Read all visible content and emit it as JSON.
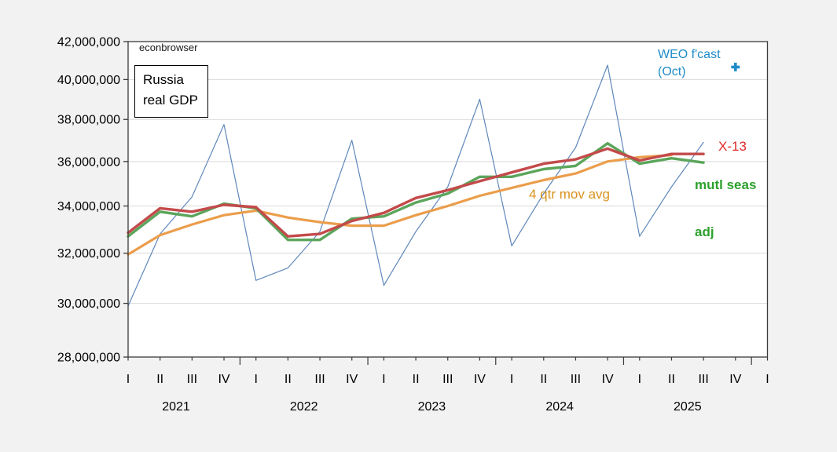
{
  "labels": {
    "watermark": "econbrowser",
    "box_line1": "Russia",
    "box_line2": "real GDP",
    "weo_line1": "WEO f'cast",
    "weo_line2": "(Oct)",
    "x13": "X-13",
    "mutl_line1": "mutl seas",
    "mutl_line2": "adj",
    "movavg": "4 qtr mov avg"
  },
  "colors": {
    "background": "#f1f2f1",
    "plot_background": "#ffffff",
    "gridline": "#d9d9d9",
    "frame": "#3a3a3a",
    "axis_text": "#000000",
    "nsa_line": "#5f87ba",
    "x13_line": "#c34a4a",
    "mutl_line": "#5ba55b",
    "movavg_line": "#eb9d4b",
    "weo_marker": "#1e8cc8"
  },
  "chart_data": {
    "type": "line",
    "title": "Russia real GDP",
    "yscale": "log",
    "ylim": [
      28000000,
      42000000
    ],
    "grid": true,
    "ytick_values": [
      42000000,
      40000000,
      38000000,
      36000000,
      34000000,
      32000000,
      30000000,
      28000000
    ],
    "ytick_labels": [
      "42,000,000",
      "40,000,000",
      "38,000,000",
      "36,000,000",
      "34,000,000",
      "32,000,000",
      "30,000,000",
      "28,000,000"
    ],
    "x_axis": {
      "quarter_labels": [
        "I",
        "II",
        "III",
        "IV",
        "I",
        "II",
        "III",
        "IV",
        "I",
        "II",
        "III",
        "IV",
        "I",
        "II",
        "III",
        "IV",
        "I",
        "II",
        "III",
        "IV",
        "I"
      ],
      "year_labels": [
        {
          "label": "2021",
          "center_index": 1.5
        },
        {
          "label": "2022",
          "center_index": 5.5
        },
        {
          "label": "2023",
          "center_index": 9.5
        },
        {
          "label": "2024",
          "center_index": 13.5
        },
        {
          "label": "2025",
          "center_index": 17.5
        }
      ]
    },
    "series": [
      {
        "name": "raw-nsa-gdp",
        "legend": "",
        "color_key": "nsa_line",
        "stroke_width": 1.2,
        "values": [
          29900000,
          32800000,
          34400000,
          37750000,
          30900000,
          31400000,
          32900000,
          37000000,
          30700000,
          32900000,
          34850000,
          39000000,
          32300000,
          34550000,
          36650000,
          40750000,
          32700000,
          34850000,
          36900000
        ]
      },
      {
        "name": "4-qtr-mov-avg",
        "legend": "4 qtr mov avg",
        "color_key": "movavg_line",
        "stroke_width": 3.2,
        "values": [
          31950000,
          32750000,
          33200000,
          33600000,
          33800000,
          33500000,
          33300000,
          33150000,
          33150000,
          33600000,
          34000000,
          34450000,
          34800000,
          35150000,
          35450000,
          36000000,
          36200000,
          36300000
        ]
      },
      {
        "name": "mutl-seas-adj",
        "legend": "mutl seas adj",
        "color_key": "mutl_line",
        "stroke_width": 3.4,
        "values": [
          32700000,
          33750000,
          33550000,
          34100000,
          33900000,
          32550000,
          32550000,
          33450000,
          33550000,
          34150000,
          34550000,
          35300000,
          35300000,
          35650000,
          35800000,
          36850000,
          35900000,
          36150000,
          35950000
        ]
      },
      {
        "name": "x-13",
        "legend": "X-13",
        "color_key": "x13_line",
        "stroke_width": 3.4,
        "values": [
          32850000,
          33900000,
          33750000,
          34050000,
          33950000,
          32700000,
          32800000,
          33350000,
          33700000,
          34350000,
          34700000,
          35100000,
          35500000,
          35900000,
          36100000,
          36600000,
          36050000,
          36350000,
          36350000
        ]
      }
    ],
    "forecast_marker": {
      "legend": "WEO f'cast (Oct)",
      "quarter_index": 19,
      "value": 40650000,
      "color_key": "weo_marker"
    }
  }
}
